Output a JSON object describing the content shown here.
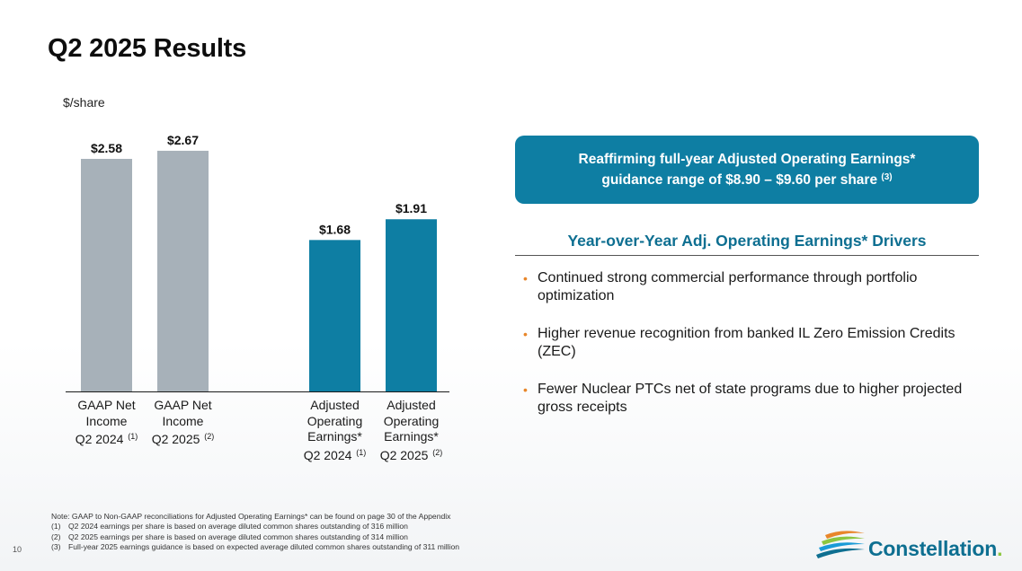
{
  "page": {
    "title": "Q2 2025 Results",
    "page_number": "10"
  },
  "chart_data": {
    "type": "bar",
    "title": "",
    "ylabel": "$/share",
    "ylim": [
      0,
      3.0
    ],
    "categories": [
      {
        "lines": [
          "GAAP Net",
          "Income",
          "Q2 2024"
        ],
        "note": "(1)"
      },
      {
        "lines": [
          "GAAP Net",
          "Income",
          "Q2 2025"
        ],
        "note": "(2)"
      },
      {
        "lines": [
          "Adjusted",
          "Operating",
          "Earnings*",
          "Q2 2024"
        ],
        "note": "(1)"
      },
      {
        "lines": [
          "Adjusted",
          "Operating",
          "Earnings*",
          "Q2 2025"
        ],
        "note": "(2)"
      }
    ],
    "values": [
      2.58,
      2.67,
      1.68,
      1.91
    ],
    "value_labels": [
      "$2.58",
      "$2.67",
      "$1.68",
      "$1.91"
    ],
    "bar_colors": [
      "#a7b1b9",
      "#a7b1b9",
      "#0e7ea3",
      "#0e7ea3"
    ]
  },
  "guidance": {
    "line1": "Reaffirming full-year Adjusted Operating Earnings*",
    "line2": "guidance range of $8.90 – $9.60 per share",
    "note": "(3)"
  },
  "drivers": {
    "title": "Year-over-Year Adj. Operating Earnings* Drivers",
    "items": [
      "Continued strong commercial performance through portfolio optimization",
      "Higher revenue recognition from banked IL Zero Emission Credits (ZEC)",
      "Fewer Nuclear PTCs net of state programs due to higher projected gross receipts"
    ]
  },
  "notes": {
    "main": "Note: GAAP to Non-GAAP reconciliations for Adjusted Operating Earnings* can be found on page 30 of the Appendix",
    "items": [
      {
        "num": "(1)",
        "text": "Q2 2024 earnings per share is based on average diluted common shares outstanding of 316 million"
      },
      {
        "num": "(2)",
        "text": "Q2 2025 earnings per share is based on average diluted common shares outstanding of 314 million"
      },
      {
        "num": "(3)",
        "text": "Full-year 2025 earnings guidance is based on expected average diluted common shares outstanding of 311 million"
      }
    ]
  },
  "logo": {
    "text": "Constellation",
    "mark": "."
  },
  "colors": {
    "accent": "#0e7ea3",
    "gaap_bar": "#a7b1b9",
    "bullet": "#e8862a",
    "heading": "#0e6f91"
  }
}
